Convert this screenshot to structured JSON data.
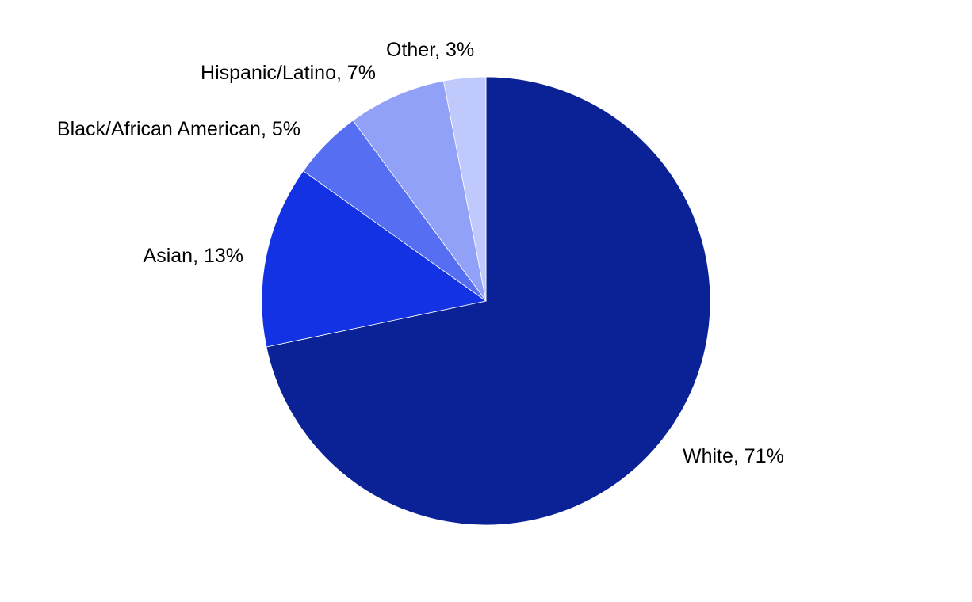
{
  "chart_data": {
    "type": "pie",
    "title": "",
    "start": "12 o'clock",
    "direction": "clockwise",
    "slices": [
      {
        "name": "White",
        "label": "White, 71%",
        "value": 71,
        "color": "#0a2296"
      },
      {
        "name": "Asian",
        "label": "Asian, 13%",
        "value": 13,
        "color": "#1232e3"
      },
      {
        "name": "Black/African American",
        "label": "Black/African American, 5%",
        "value": 5,
        "color": "#566ff2"
      },
      {
        "name": "Hispanic/Latino",
        "label": "Hispanic/Latino, 7%",
        "value": 7,
        "color": "#91a1f7"
      },
      {
        "name": "Other",
        "label": "Other, 3%",
        "value": 3,
        "color": "#c0c9fb"
      }
    ]
  }
}
